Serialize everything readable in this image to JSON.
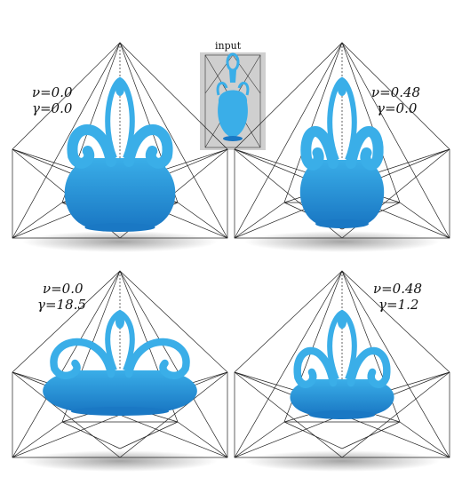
{
  "input_panel": {
    "title": "input"
  },
  "panels": [
    {
      "id": "top-left",
      "nu": "ν=0.0",
      "gamma": "γ=0.0"
    },
    {
      "id": "top-right",
      "nu": "ν=0.48",
      "gamma": "γ=0.0"
    },
    {
      "id": "bottom-left",
      "nu": "ν=0.0",
      "gamma": "γ=18.5"
    },
    {
      "id": "bottom-right",
      "nu": "ν=0.48",
      "gamma": "γ=1.2"
    }
  ],
  "colors": {
    "shape": "#3aaee8",
    "shape_dark": "#1a78c4",
    "cage": "#222222",
    "shadow": "#9a9a9a"
  }
}
